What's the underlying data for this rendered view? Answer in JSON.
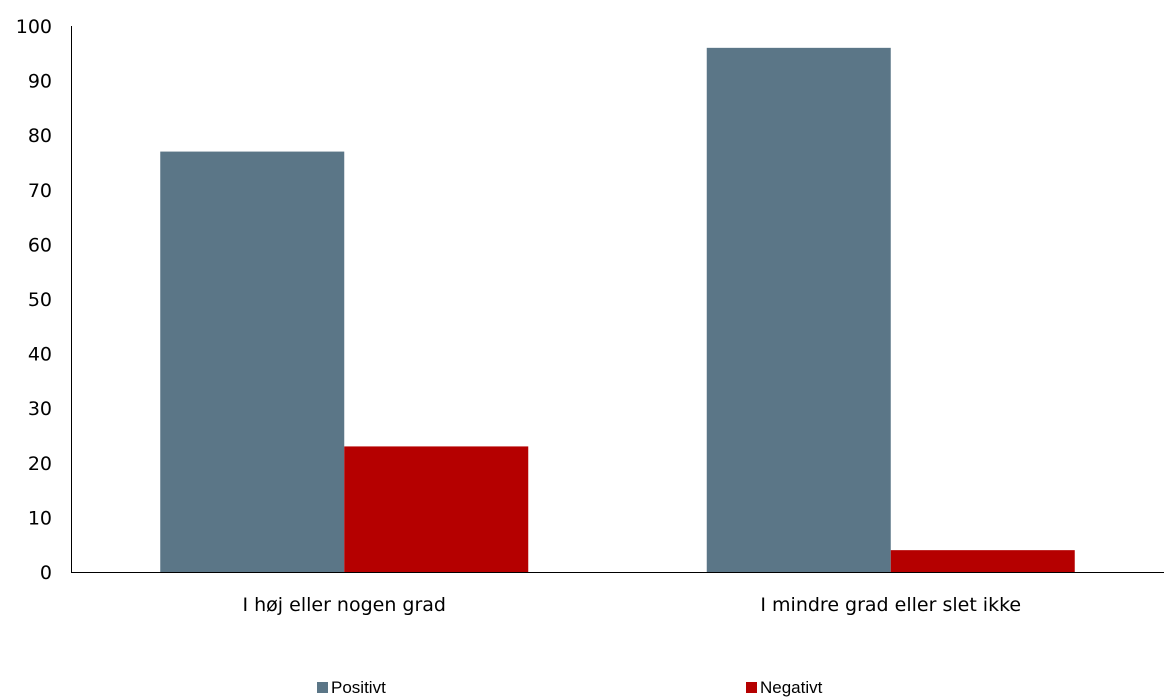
{
  "chart_data": {
    "type": "bar",
    "categories": [
      "I høj eller nogen grad",
      "I mindre grad eller slet ikke"
    ],
    "series": [
      {
        "name": "Positivt",
        "values": [
          77,
          96
        ],
        "color": "#5b7687"
      },
      {
        "name": "Negativt",
        "values": [
          23,
          4
        ],
        "color": "#b50000"
      }
    ],
    "ylim": [
      0,
      100
    ],
    "yticks": [
      0,
      10,
      20,
      30,
      40,
      50,
      60,
      70,
      80,
      90,
      100
    ],
    "grid": false,
    "legend_position": "bottom"
  }
}
